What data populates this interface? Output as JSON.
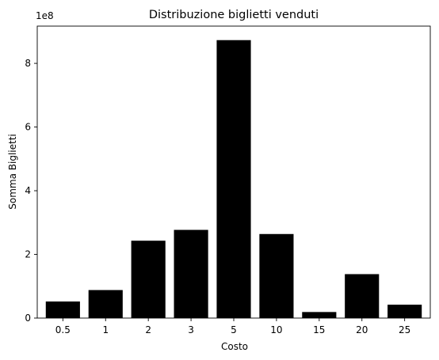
{
  "chart_data": {
    "type": "bar",
    "title": "Distribuzione biglietti venduti",
    "xlabel": "Costo",
    "ylabel": "Somma Biglietti",
    "categories": [
      "0.5",
      "1",
      "2",
      "3",
      "5",
      "10",
      "15",
      "20",
      "25"
    ],
    "values": [
      52000000,
      88000000,
      243000000,
      277000000,
      873000000,
      264000000,
      19000000,
      138000000,
      42000000
    ],
    "ylim": [
      0,
      917000000
    ],
    "y_ticks": [
      0,
      200000000,
      400000000,
      600000000,
      800000000
    ],
    "y_tick_labels": [
      "0",
      "2",
      "4",
      "6",
      "8"
    ],
    "y_offset_label": "1e8",
    "bar_color": "#000000",
    "grid": false,
    "legend": "none"
  }
}
